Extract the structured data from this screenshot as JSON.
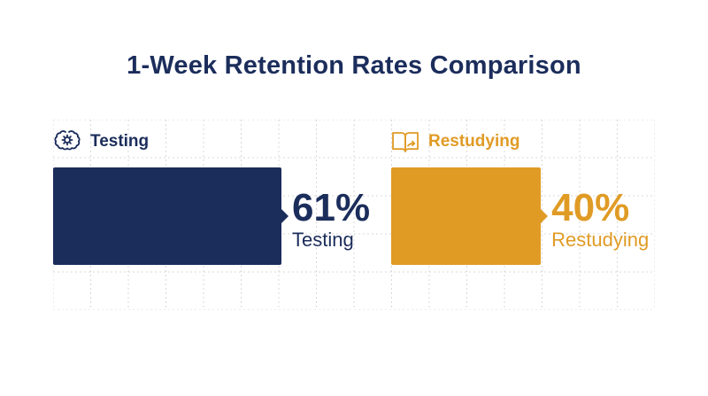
{
  "title": "1-Week Retention Rates Comparison",
  "colors": {
    "testing": "#1b2d5b",
    "restudying": "#e09b25",
    "grid": "#d8d8d8"
  },
  "panels": [
    {
      "header": "Testing",
      "icon": "brain-gear-icon",
      "value_label": "61%",
      "category_label": "Testing"
    },
    {
      "header": "Restudying",
      "icon": "open-book-icon",
      "value_label": "40%",
      "category_label": "Restudying"
    }
  ],
  "chart_data": {
    "type": "bar",
    "title": "1-Week Retention Rates Comparison",
    "categories": [
      "Testing",
      "Restudying"
    ],
    "values": [
      61,
      40
    ],
    "unit": "%",
    "grid": true,
    "legend": "none"
  }
}
